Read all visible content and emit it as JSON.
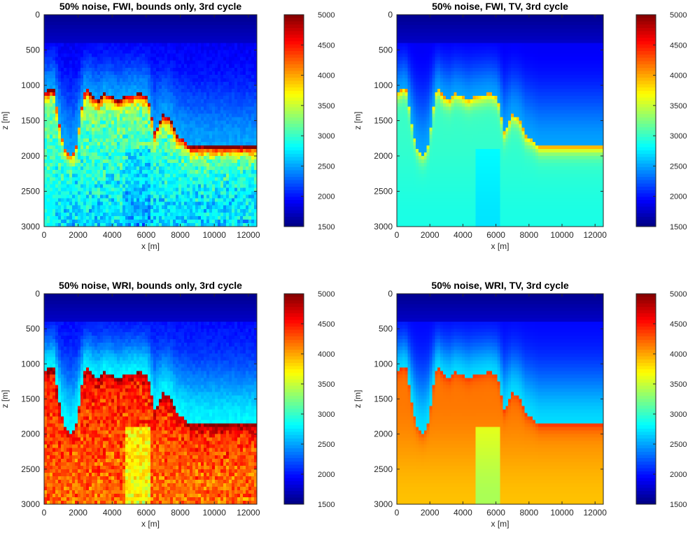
{
  "colors": {
    "background": "#ffffff",
    "axis": "#262626",
    "jet_stops": [
      "#00008f",
      "#0000ff",
      "#00ffff",
      "#ffff00",
      "#ff0000",
      "#800000"
    ]
  },
  "chart_data": [
    {
      "type": "heatmap",
      "id": "p1",
      "title": "50% noise, FWI, bounds only, 3rd cycle",
      "xlabel": "x [m]",
      "ylabel": "z [m]",
      "xlim": [
        0,
        12500
      ],
      "ylim": [
        0,
        3000
      ],
      "y_reversed": true,
      "xticks": [
        0,
        2000,
        4000,
        6000,
        8000,
        10000,
        12000
      ],
      "yticks": [
        0,
        500,
        1000,
        1500,
        2000,
        2500,
        3000
      ],
      "colorbar": {
        "range": [
          1500,
          5000
        ],
        "ticks": [
          1500,
          2000,
          2500,
          3000,
          3500,
          4000,
          4500,
          5000
        ],
        "colormap": "jet"
      },
      "model": {
        "method": "FWI",
        "regularization": "bounds only",
        "water_velocity": 1700,
        "sediment_velocity": 2500,
        "body_velocity": 3100,
        "boundary_velocity": 4600,
        "deep_velocity": 2700,
        "noise": 0.5
      }
    },
    {
      "type": "heatmap",
      "id": "p2",
      "title": "50% noise, FWI, TV, 3rd cycle",
      "xlabel": "x [m]",
      "ylabel": "z [m]",
      "xlim": [
        0,
        12500
      ],
      "ylim": [
        0,
        3000
      ],
      "y_reversed": true,
      "xticks": [
        0,
        2000,
        4000,
        6000,
        8000,
        10000,
        12000
      ],
      "yticks": [
        0,
        500,
        1000,
        1500,
        2000,
        2500,
        3000
      ],
      "colorbar": {
        "range": [
          1500,
          5000
        ],
        "ticks": [
          1500,
          2000,
          2500,
          3000,
          3500,
          4000,
          4500,
          5000
        ],
        "colormap": "jet"
      },
      "model": {
        "method": "FWI",
        "regularization": "TV",
        "water_velocity": 1700,
        "sediment_velocity": 2500,
        "body_velocity": 3000,
        "boundary_velocity": 3700,
        "deep_velocity": 2900,
        "noise": 0.0
      }
    },
    {
      "type": "heatmap",
      "id": "p3",
      "title": "50% noise, WRI, bounds only, 3rd cycle",
      "xlabel": "x [m]",
      "ylabel": "z [m]",
      "xlim": [
        0,
        12500
      ],
      "ylim": [
        0,
        3000
      ],
      "y_reversed": true,
      "xticks": [
        0,
        2000,
        4000,
        6000,
        8000,
        10000,
        12000
      ],
      "yticks": [
        0,
        500,
        1000,
        1500,
        2000,
        2500,
        3000
      ],
      "colorbar": {
        "range": [
          1500,
          5000
        ],
        "ticks": [
          1500,
          2000,
          2500,
          3000,
          3500,
          4000,
          4500,
          5000
        ],
        "colormap": "jet"
      },
      "model": {
        "method": "WRI",
        "regularization": "bounds only",
        "water_velocity": 1700,
        "sediment_velocity": 2800,
        "body_velocity": 4400,
        "boundary_velocity": 4800,
        "deep_velocity": 4200,
        "noise": 0.45
      }
    },
    {
      "type": "heatmap",
      "id": "p4",
      "title": "50% noise, WRI, TV, 3rd cycle",
      "xlabel": "x [m]",
      "ylabel": "z [m]",
      "xlim": [
        0,
        12500
      ],
      "ylim": [
        0,
        3000
      ],
      "y_reversed": true,
      "xticks": [
        0,
        2000,
        4000,
        6000,
        8000,
        10000,
        12000
      ],
      "yticks": [
        0,
        500,
        1000,
        1500,
        2000,
        2500,
        3000
      ],
      "colorbar": {
        "range": [
          1500,
          5000
        ],
        "ticks": [
          1500,
          2000,
          2500,
          3000,
          3500,
          4000,
          4500,
          5000
        ],
        "colormap": "jet"
      },
      "model": {
        "method": "WRI",
        "regularization": "TV",
        "water_velocity": 1700,
        "sediment_velocity": 2700,
        "body_velocity": 4150,
        "boundary_velocity": 4300,
        "deep_velocity": 3900,
        "noise": 0.0
      }
    }
  ]
}
